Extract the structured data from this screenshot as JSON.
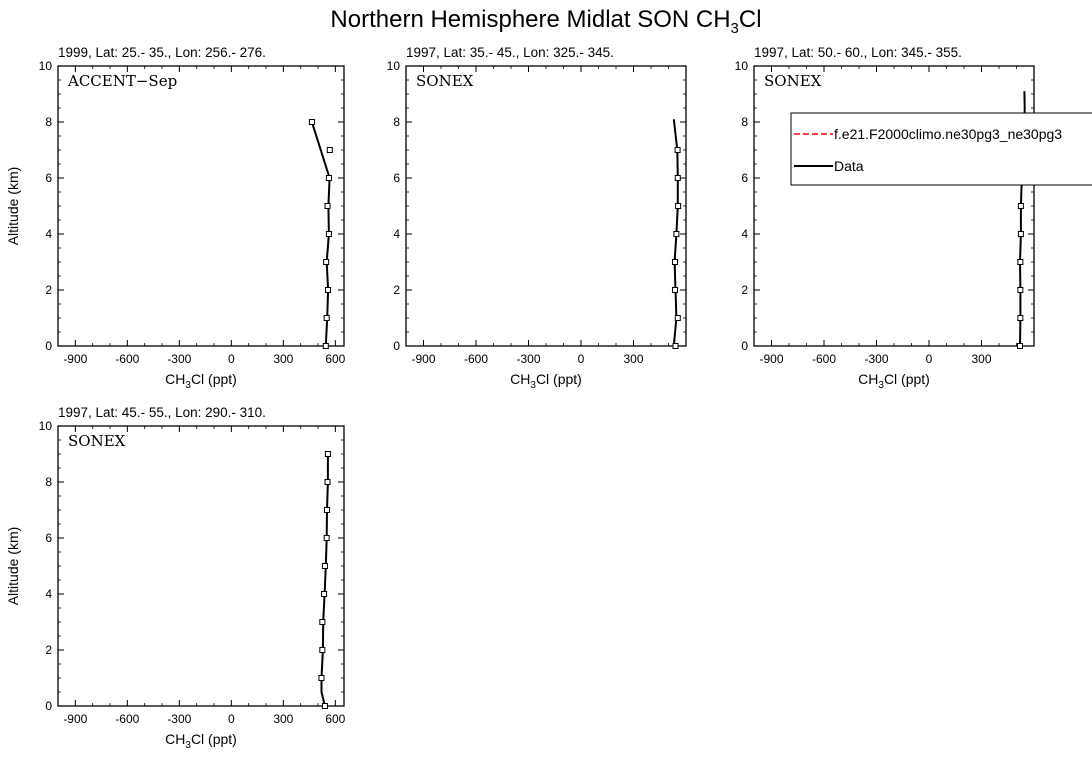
{
  "figure": {
    "title_main": "Northern Hemisphere Midlat SON CH",
    "title_sub": "3",
    "title_tail": "Cl"
  },
  "chart_data": [
    {
      "type": "line",
      "title": "1999, Lat: 25.- 35., Lon: 256.- 276.",
      "campaign": "ACCENT−Sep",
      "xlabel_main": "CH",
      "xlabel_sub": "3",
      "xlabel_tail": "Cl (ppt)",
      "ylabel": "Altitude (km)",
      "xlim": [
        -1000,
        650
      ],
      "ylim": [
        0,
        10
      ],
      "xticks": [
        -900,
        -600,
        -300,
        0,
        300,
        600
      ],
      "yticks": [
        0,
        2,
        4,
        6,
        8,
        10
      ],
      "series": [
        {
          "x": [
            545,
            553,
            558,
            550,
            563,
            560,
            567,
            465
          ],
          "y": [
            0,
            1,
            2,
            3,
            4,
            5,
            6,
            8
          ]
        }
      ],
      "markers": [
        {
          "x": 545,
          "y": 0
        },
        {
          "x": 550,
          "y": 1
        },
        {
          "x": 558,
          "y": 2
        },
        {
          "x": 547,
          "y": 3
        },
        {
          "x": 563,
          "y": 4
        },
        {
          "x": 555,
          "y": 5
        },
        {
          "x": 563,
          "y": 6
        },
        {
          "x": 568,
          "y": 7
        },
        {
          "x": 465,
          "y": 8
        }
      ],
      "legend": null
    },
    {
      "type": "line",
      "title": "1997, Lat: 35.- 45., Lon: 325.- 345.",
      "campaign": "SONEX",
      "xlabel_main": "CH",
      "xlabel_sub": "3",
      "xlabel_tail": "Cl (ppt)",
      "ylabel": "Altitude (km)",
      "xlim": [
        -1000,
        600
      ],
      "ylim": [
        0,
        10
      ],
      "xticks": [
        -900,
        -600,
        -300,
        0,
        300
      ],
      "yticks": [
        0,
        2,
        4,
        6,
        8,
        10
      ],
      "series": [
        {
          "x": [
            530,
            545,
            540,
            535,
            545,
            553,
            553,
            550,
            530
          ],
          "y": [
            0,
            1,
            2,
            3,
            4,
            5,
            6,
            7,
            8.1
          ]
        }
      ],
      "markers": [
        {
          "x": 540,
          "y": 0
        },
        {
          "x": 553,
          "y": 1
        },
        {
          "x": 537,
          "y": 2
        },
        {
          "x": 537,
          "y": 3
        },
        {
          "x": 545,
          "y": 4
        },
        {
          "x": 555,
          "y": 5
        },
        {
          "x": 553,
          "y": 6
        },
        {
          "x": 552,
          "y": 7
        }
      ],
      "legend": null
    },
    {
      "type": "line",
      "title": "1997, Lat: 50.- 60., Lon: 345.- 355.",
      "campaign": "SONEX",
      "xlabel_main": "CH",
      "xlabel_sub": "3",
      "xlabel_tail": "Cl (ppt)",
      "ylabel": "Altitude (km)",
      "xlim": [
        -1000,
        600
      ],
      "ylim": [
        0,
        10
      ],
      "xticks": [
        -900,
        -600,
        -300,
        0,
        300
      ],
      "yticks": [
        0,
        2,
        4,
        6,
        8,
        10
      ],
      "series": [
        {
          "x": [
            520,
            522,
            522,
            520,
            525,
            525,
            530,
            540,
            545,
            547,
            545
          ],
          "y": [
            0,
            1,
            2,
            3,
            4,
            5,
            6,
            7,
            8,
            8.5,
            9.1
          ]
        }
      ],
      "markers": [
        {
          "x": 520,
          "y": 0
        },
        {
          "x": 522,
          "y": 1
        },
        {
          "x": 522,
          "y": 2
        },
        {
          "x": 522,
          "y": 3
        },
        {
          "x": 525,
          "y": 4
        },
        {
          "x": 525,
          "y": 5
        },
        {
          "x": 530,
          "y": 6
        },
        {
          "x": 542,
          "y": 7
        },
        {
          "x": 545,
          "y": 8
        }
      ],
      "legend": {
        "entries": [
          {
            "label": "f.e21.F2000climo.ne30pg3_ne30pg3",
            "color": "#ff0000",
            "dash": true
          },
          {
            "label": "Data",
            "color": "#000000",
            "dash": false
          }
        ]
      }
    },
    {
      "type": "line",
      "title": "1997, Lat: 45.- 55., Lon: 290.- 310.",
      "campaign": "SONEX",
      "xlabel_main": "CH",
      "xlabel_sub": "3",
      "xlabel_tail": "Cl (ppt)",
      "ylabel": "Altitude (km)",
      "xlim": [
        -1000,
        650
      ],
      "ylim": [
        0,
        10
      ],
      "xticks": [
        -900,
        -600,
        -300,
        0,
        300,
        600
      ],
      "yticks": [
        0,
        2,
        4,
        6,
        8,
        10
      ],
      "series": [
        {
          "x": [
            540,
            520,
            520,
            528,
            530,
            538,
            545,
            550,
            552,
            557,
            557
          ],
          "y": [
            0,
            0.5,
            1,
            2,
            3,
            4,
            5,
            6,
            7,
            8,
            9
          ]
        }
      ],
      "markers": [
        {
          "x": 540,
          "y": 0
        },
        {
          "x": 520,
          "y": 1
        },
        {
          "x": 525,
          "y": 2
        },
        {
          "x": 525,
          "y": 3
        },
        {
          "x": 535,
          "y": 4
        },
        {
          "x": 540,
          "y": 5
        },
        {
          "x": 550,
          "y": 6
        },
        {
          "x": 552,
          "y": 7
        },
        {
          "x": 555,
          "y": 8
        },
        {
          "x": 557,
          "y": 9
        }
      ],
      "legend": null
    }
  ]
}
